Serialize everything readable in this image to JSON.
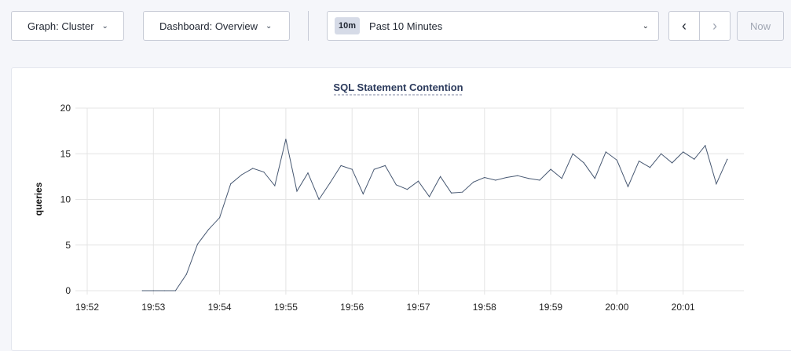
{
  "toolbar": {
    "graph": "Graph: Cluster",
    "dashboard": "Dashboard: Overview",
    "time_badge": "10m",
    "time_range": "Past 10 Minutes",
    "prev_icon": "chevron-left-icon",
    "next_icon": "chevron-right-icon",
    "now": "Now"
  },
  "chart_data": {
    "type": "line",
    "title": "SQL Statement Contention",
    "ylabel": "queries",
    "xlabel": "",
    "ylim": [
      0,
      20
    ],
    "yticks": [
      "0",
      "5",
      "10",
      "15",
      "20"
    ],
    "xticks": [
      "19:52",
      "19:53",
      "19:54",
      "19:55",
      "19:56",
      "19:57",
      "19:58",
      "19:59",
      "20:00",
      "20:01"
    ],
    "grid": true,
    "line_color": "#475872",
    "x": [
      "19:52:50",
      "19:53:00",
      "19:53:10",
      "19:53:20",
      "19:53:30",
      "19:53:40",
      "19:53:50",
      "19:54:00",
      "19:54:10",
      "19:54:20",
      "19:54:30",
      "19:54:40",
      "19:54:50",
      "19:55:00",
      "19:55:10",
      "19:55:20",
      "19:55:30",
      "19:55:40",
      "19:55:50",
      "19:56:00",
      "19:56:10",
      "19:56:20",
      "19:56:30",
      "19:56:40",
      "19:56:50",
      "19:57:00",
      "19:57:10",
      "19:57:20",
      "19:57:30",
      "19:57:40",
      "19:57:50",
      "19:58:00",
      "19:58:10",
      "19:58:20",
      "19:58:30",
      "19:58:40",
      "19:58:50",
      "19:59:00",
      "19:59:10",
      "19:59:20",
      "19:59:30",
      "19:59:40",
      "19:59:50",
      "20:00:00",
      "20:00:10",
      "20:00:20",
      "20:00:30",
      "20:00:40",
      "20:00:50",
      "20:01:00",
      "20:01:10",
      "20:01:20",
      "20:01:30",
      "20:01:40"
    ],
    "values": [
      0,
      0,
      0,
      0,
      1.8,
      5.1,
      6.7,
      8.0,
      11.7,
      12.7,
      13.4,
      13.0,
      11.5,
      16.6,
      10.9,
      12.9,
      10.0,
      11.8,
      13.7,
      13.3,
      10.6,
      13.3,
      13.7,
      11.6,
      11.1,
      12.0,
      10.3,
      12.5,
      10.7,
      10.8,
      11.9,
      12.4,
      12.1,
      12.4,
      12.6,
      12.3,
      12.1,
      13.3,
      12.3,
      15.0,
      14.0,
      12.3,
      15.2,
      14.3,
      11.4,
      14.2,
      13.5,
      15.0,
      14.0,
      15.2,
      14.4,
      15.9,
      11.7,
      14.4
    ]
  }
}
